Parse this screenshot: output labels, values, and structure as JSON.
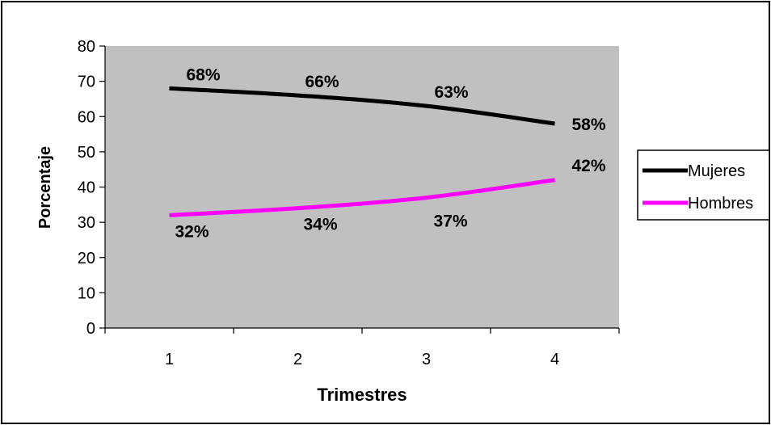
{
  "chart_data": {
    "type": "line",
    "title": "",
    "xlabel": "Trimestres",
    "ylabel": "Porcentaje",
    "categories": [
      "1",
      "2",
      "3",
      "4"
    ],
    "ylim": [
      0,
      80
    ],
    "yticks": [
      "0",
      "10",
      "20",
      "30",
      "40",
      "50",
      "60",
      "70",
      "80"
    ],
    "grid": false,
    "legend_position": "right",
    "plot_background": "#c0c0c0",
    "series": [
      {
        "name": "Mujeres",
        "color": "#000000",
        "values": [
          68,
          66,
          63,
          58
        ],
        "labels": [
          "68%",
          "66%",
          "63%",
          "58%"
        ]
      },
      {
        "name": "Hombres",
        "color": "#ff00ff",
        "values": [
          32,
          34,
          37,
          42
        ],
        "labels": [
          "32%",
          "34%",
          "37%",
          "42%"
        ]
      }
    ]
  }
}
